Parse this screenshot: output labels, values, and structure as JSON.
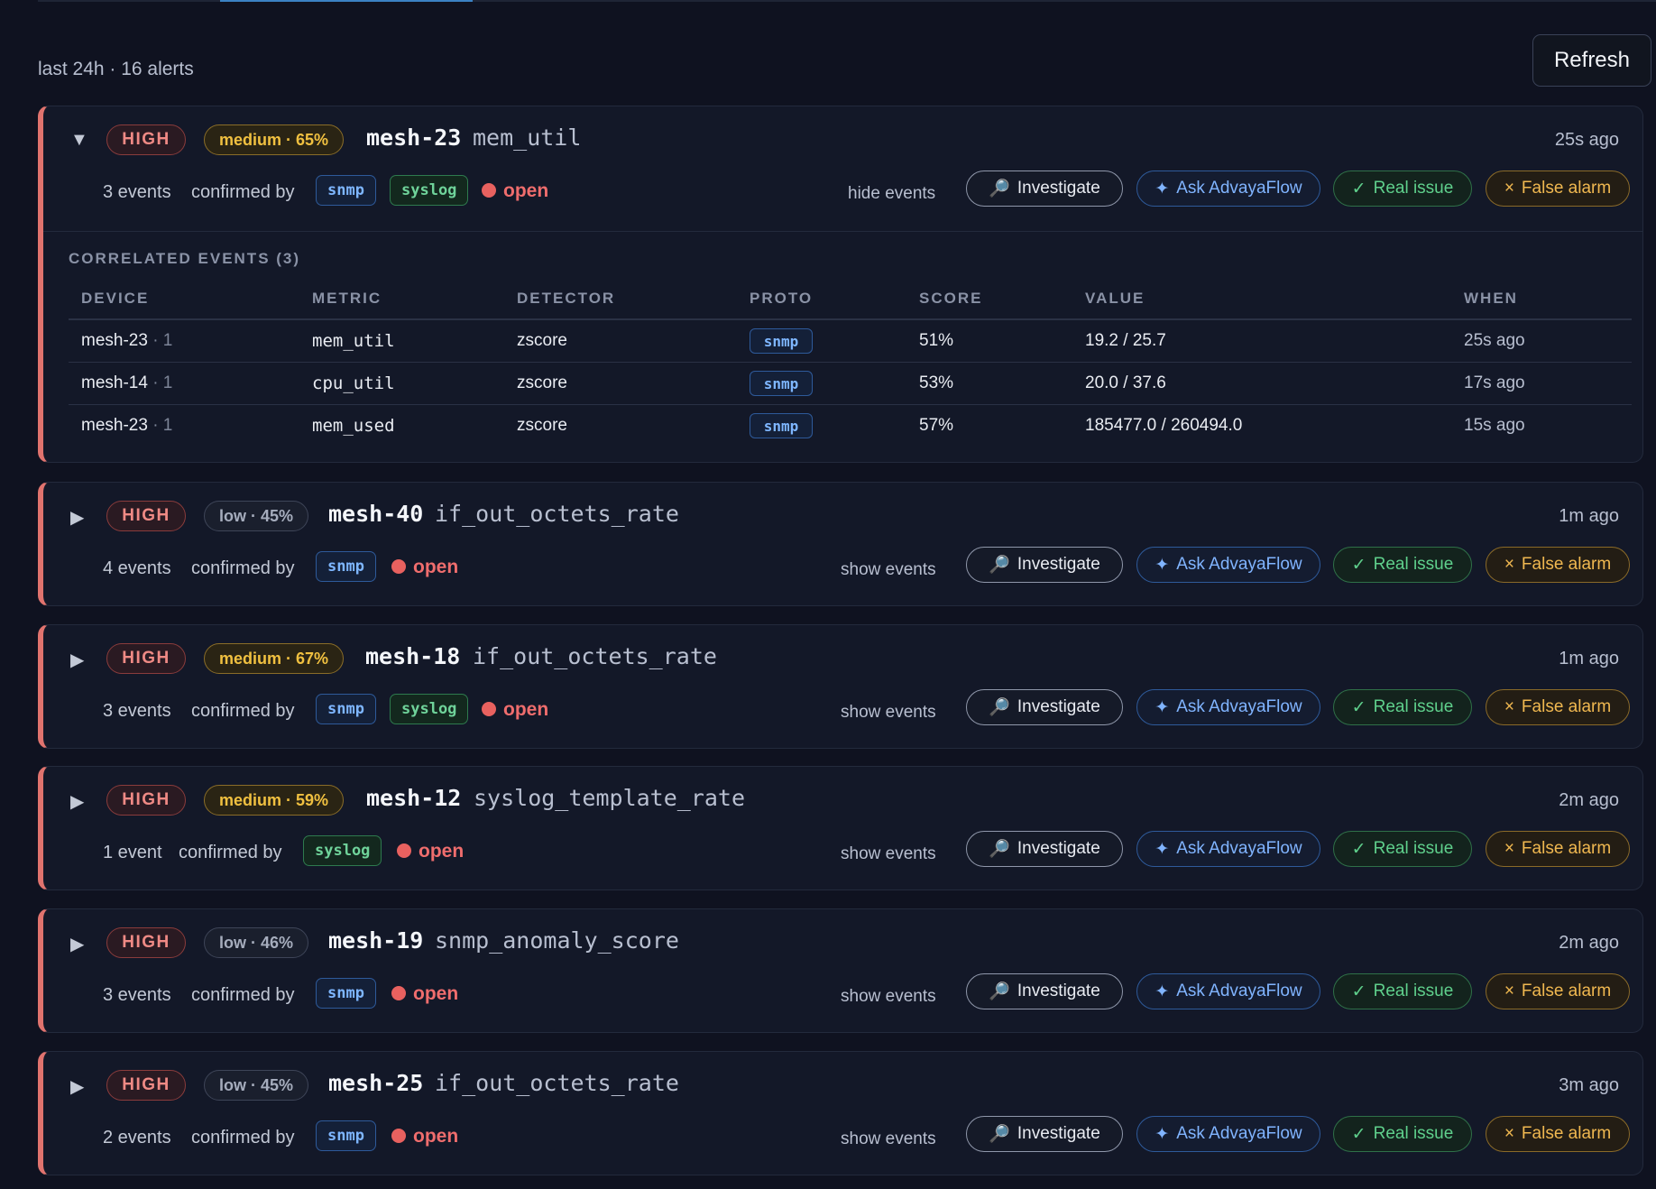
{
  "header": {
    "summary": "last 24h · 16 alerts",
    "refresh_label": "Refresh"
  },
  "actions": {
    "investigate": "Investigate",
    "ask": "Ask AdvayaFlow",
    "real": "Real issue",
    "false": "False alarm",
    "confirmed_by": "confirmed by"
  },
  "icons": {
    "expanded": "caret-down-icon",
    "collapsed": "caret-right-icon",
    "investigate": "magnifier-icon",
    "ask": "sparkle-icon",
    "real": "check-icon",
    "false": "x-icon"
  },
  "colors": {
    "high": "#ef8a85",
    "medium": "#f0c040",
    "snmp": "#7eb6ff",
    "syslog": "#6fd39a",
    "open": "#ef6d6d"
  },
  "alerts": [
    {
      "caret": "▼",
      "severity": "HIGH",
      "confidence": "medium · 65%",
      "device": "mesh-23",
      "metric": "mem_util",
      "ago": "25s ago",
      "events": "3 events",
      "sources": [
        "snmp",
        "syslog"
      ],
      "status": "open",
      "toggle": "hide events",
      "correlated": {
        "title": "CORRELATED EVENTS (3)",
        "columns": [
          "DEVICE",
          "METRIC",
          "DETECTOR",
          "PROTO",
          "SCORE",
          "VALUE",
          "WHEN"
        ],
        "rows": [
          {
            "device": "mesh-23",
            "count": " · 1",
            "metric": "mem_util",
            "detector": "zscore",
            "proto": "snmp",
            "score": "51%",
            "value": "19.2 / 25.7",
            "when": "25s ago"
          },
          {
            "device": "mesh-14",
            "count": " · 1",
            "metric": "cpu_util",
            "detector": "zscore",
            "proto": "snmp",
            "score": "53%",
            "value": "20.0 / 37.6",
            "when": "17s ago"
          },
          {
            "device": "mesh-23",
            "count": " · 1",
            "metric": "mem_used",
            "detector": "zscore",
            "proto": "snmp",
            "score": "57%",
            "value": "185477.0 / 260494.0",
            "when": "15s ago"
          }
        ]
      }
    },
    {
      "caret": "▶",
      "severity": "HIGH",
      "confidence": "low · 45%",
      "device": "mesh-40",
      "metric": "if_out_octets_rate",
      "ago": "1m ago",
      "events": "4 events",
      "sources": [
        "snmp"
      ],
      "status": "open",
      "toggle": "show events"
    },
    {
      "caret": "▶",
      "severity": "HIGH",
      "confidence": "medium · 67%",
      "device": "mesh-18",
      "metric": "if_out_octets_rate",
      "ago": "1m ago",
      "events": "3 events",
      "sources": [
        "snmp",
        "syslog"
      ],
      "status": "open",
      "toggle": "show events"
    },
    {
      "caret": "▶",
      "severity": "HIGH",
      "confidence": "medium · 59%",
      "device": "mesh-12",
      "metric": "syslog_template_rate",
      "ago": "2m ago",
      "events": "1 event",
      "sources": [
        "syslog"
      ],
      "status": "open",
      "toggle": "show events"
    },
    {
      "caret": "▶",
      "severity": "HIGH",
      "confidence": "low · 46%",
      "device": "mesh-19",
      "metric": "snmp_anomaly_score",
      "ago": "2m ago",
      "events": "3 events",
      "sources": [
        "snmp"
      ],
      "status": "open",
      "toggle": "show events"
    },
    {
      "caret": "▶",
      "severity": "HIGH",
      "confidence": "low · 45%",
      "device": "mesh-25",
      "metric": "if_out_octets_rate",
      "ago": "3m ago",
      "events": "2 events",
      "sources": [
        "snmp"
      ],
      "status": "open",
      "toggle": "show events"
    }
  ]
}
